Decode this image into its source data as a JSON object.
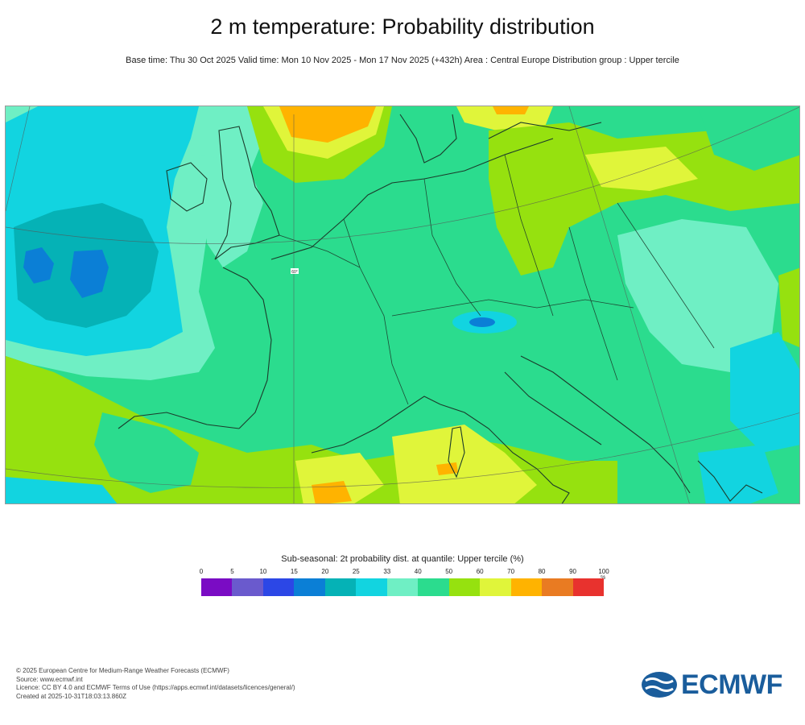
{
  "title": "2 m temperature: Probability distribution",
  "subtitle": "Base time: Thu 30 Oct 2025 Valid time: Mon 10 Nov 2025 - Mon 17 Nov 2025 (+432h) Area : Central Europe Distribution group : Upper tercile",
  "map": {
    "region": "Central Europe",
    "gridline_label": "60°"
  },
  "legend": {
    "title": "Sub-seasonal: 2t probability dist. at quantile: Upper tercile (%)",
    "unit": "%",
    "ticks": [
      "0",
      "5",
      "10",
      "15",
      "20",
      "25",
      "33",
      "40",
      "50",
      "60",
      "70",
      "80",
      "90",
      "100"
    ],
    "colors": [
      "#7a0cc4",
      "#6a5acd",
      "#2c47e6",
      "#0b7fd6",
      "#05b2b6",
      "#12d4e0",
      "#6fefc4",
      "#2bdc8e",
      "#96e10f",
      "#e0f53a",
      "#ffb300",
      "#e97b22",
      "#e8322e"
    ]
  },
  "footer": {
    "copyright": "© 2025 European Centre for Medium-Range Weather Forecasts (ECMWF)",
    "source": "Source: www.ecmwf.int",
    "licence": "Licence: CC BY 4.0 and ECMWF Terms of Use (https://apps.ecmwf.int/datasets/licences/general/)",
    "created": "Created at 2025-10-31T18:03:13.860Z"
  },
  "logo": {
    "text": "ECMWF",
    "color": "#1a5d9c"
  }
}
